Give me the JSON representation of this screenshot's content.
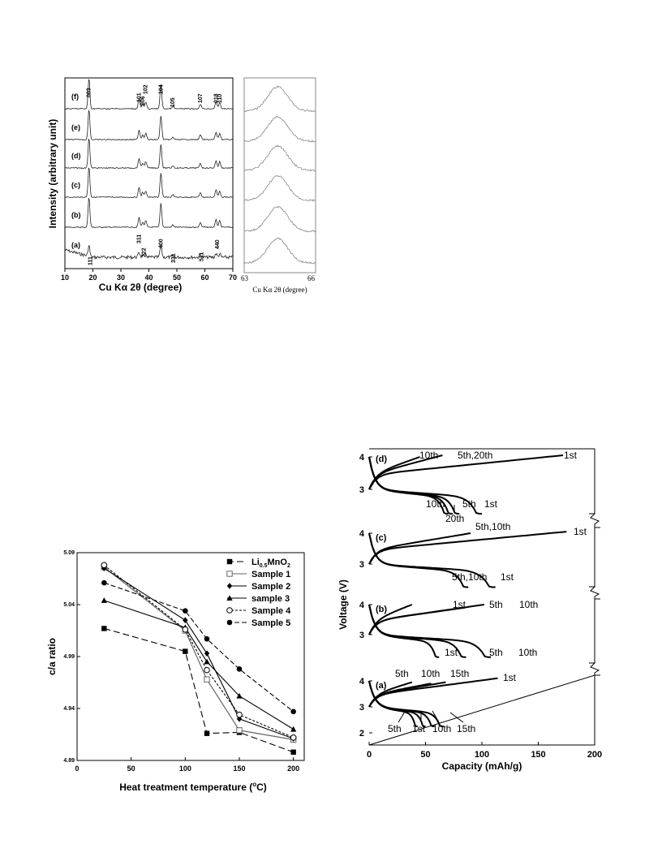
{
  "chart_data": [
    {
      "type": "line",
      "panel": "xrd",
      "xlabel": "Cu Kα 2θ (degree)",
      "ylabel": "Intensity (arbitrary unit)",
      "xlim": [
        10,
        70
      ],
      "xticks": [
        10,
        20,
        30,
        40,
        50,
        60,
        70
      ],
      "series": [
        {
          "name": "(a)"
        },
        {
          "name": "(b)"
        },
        {
          "name": "(c)"
        },
        {
          "name": "(d)"
        },
        {
          "name": "(e)"
        },
        {
          "name": "(f)"
        }
      ],
      "peaks_f": [
        {
          "label": "003",
          "x": 18.6
        },
        {
          "label": "101",
          "x": 36.5
        },
        {
          "label": "006",
          "x": 37.8
        },
        {
          "label": "102",
          "x": 38.9
        },
        {
          "label": "104",
          "x": 44.3
        },
        {
          "label": "105",
          "x": 48.6
        },
        {
          "label": "107",
          "x": 58.4
        },
        {
          "label": "018",
          "x": 64.0
        },
        {
          "label": "110",
          "x": 65.3
        }
      ],
      "peaks_a": [
        {
          "label": "111",
          "x": 18.8
        },
        {
          "label": "311",
          "x": 36.3
        },
        {
          "label": "222",
          "x": 37.9
        },
        {
          "label": "400",
          "x": 44.0
        },
        {
          "label": "331",
          "x": 48.5
        },
        {
          "label": "511",
          "x": 58.5
        },
        {
          "label": "440",
          "x": 64.2
        }
      ]
    },
    {
      "type": "line",
      "panel": "xrd-zoom",
      "xlabel": "Cu Kα 2θ (degree)",
      "xlim": [
        63,
        66
      ],
      "xticks": [
        63,
        66
      ],
      "series_count": 6
    },
    {
      "type": "line",
      "panel": "ca-ratio",
      "xlabel": "Heat treatment temperature (°C)",
      "xlabel_parts": [
        "Heat treatment temperature (",
        "o",
        "C)"
      ],
      "ylabel": "c/a ratio",
      "xlim": [
        0,
        210
      ],
      "xticks": [
        0,
        50,
        100,
        150,
        200
      ],
      "ylim": [
        4.89,
        5.09
      ],
      "yticks": [
        "4.89",
        "4.94",
        "4.99",
        "5.04",
        "5.09"
      ],
      "legend_position": "top-right",
      "series": [
        {
          "name": "Li0.5MnO2",
          "name_parts": [
            "Li",
            "0.5",
            "MnO",
            "2"
          ],
          "marker": "square-filled",
          "dash": "long-dash",
          "color": "#000000",
          "x": [
            25,
            100,
            120,
            150,
            200
          ],
          "y": [
            5.017,
            4.995,
            4.916,
            4.917,
            4.898
          ]
        },
        {
          "name": "Sample 1",
          "marker": "square-open",
          "dash": "solid",
          "color": "#666666",
          "x": [
            25,
            100,
            120,
            150,
            200
          ],
          "y": [
            5.076,
            5.015,
            4.968,
            4.919,
            4.91
          ]
        },
        {
          "name": "Sample 2",
          "marker": "diamond-filled",
          "dash": "solid",
          "color": "#000000",
          "x": [
            25,
            100,
            120,
            150,
            200
          ],
          "y": [
            5.075,
            5.025,
            4.993,
            4.93,
            4.911
          ]
        },
        {
          "name": "sample 3",
          "marker": "triangle-filled",
          "dash": "solid",
          "color": "#000000",
          "x": [
            25,
            100,
            120,
            150,
            200
          ],
          "y": [
            5.044,
            5.018,
            4.985,
            4.952,
            4.92
          ]
        },
        {
          "name": "Sample 4",
          "marker": "circle-open",
          "dash": "short-dash",
          "color": "#000000",
          "x": [
            25,
            100,
            120,
            150,
            200
          ],
          "y": [
            5.078,
            5.016,
            4.977,
            4.934,
            4.912
          ]
        },
        {
          "name": "Sample 5",
          "marker": "circle-filled",
          "dash": "dash",
          "color": "#000000",
          "x": [
            25,
            100,
            120,
            150,
            200
          ],
          "y": [
            5.061,
            5.034,
            5.007,
            4.978,
            4.937
          ]
        }
      ]
    },
    {
      "type": "line",
      "panel": "cycling",
      "xlabel": "Capacity (mAh/g)",
      "ylabel": "Voltage (V)",
      "xlim": [
        0,
        200
      ],
      "xticks": [
        0,
        50,
        100,
        150,
        200
      ],
      "subplots": [
        {
          "label": "(d)",
          "yticks": [
            3,
            4
          ],
          "annotations": [
            "10th",
            "5th,20th",
            "1st",
            "10th",
            "5th",
            "1st",
            "20th"
          ]
        },
        {
          "label": "(c)",
          "yticks": [
            3,
            4
          ],
          "annotations": [
            "5th,10th",
            "1st",
            "5th,10th",
            "1st"
          ]
        },
        {
          "label": "(b)",
          "yticks": [
            3,
            4
          ],
          "annotations": [
            "1st",
            "5th",
            "10th",
            "1st",
            "5th",
            "10th"
          ]
        },
        {
          "label": "(a)",
          "yticks": [
            2,
            3,
            4
          ],
          "annotations": [
            "5th",
            "10th",
            "15th",
            "1st",
            "5th",
            "1st",
            "10th",
            "15th"
          ]
        }
      ]
    }
  ]
}
